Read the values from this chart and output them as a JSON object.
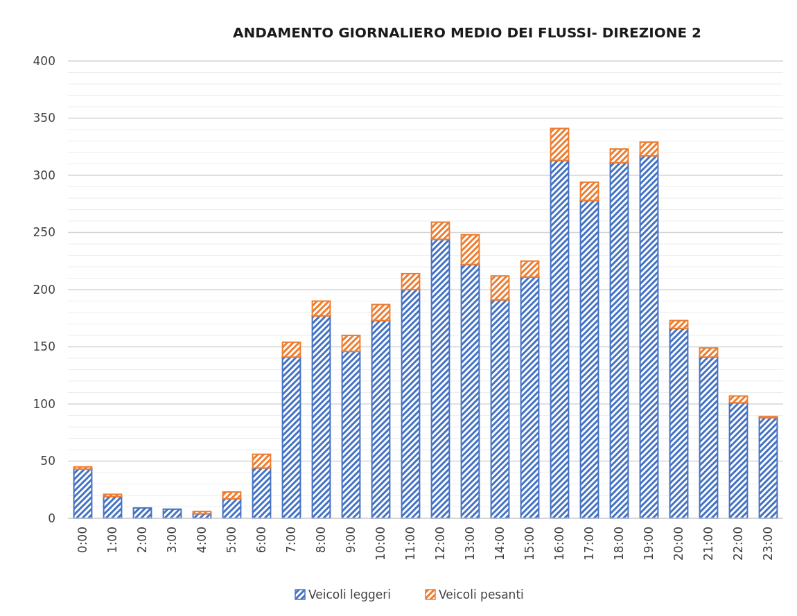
{
  "chart_data": {
    "type": "bar",
    "title": "ANDAMENTO GIORNALIERO MEDIO DEI  FLUSSI- DIREZIONE 2",
    "categories": [
      "0:00",
      "1:00",
      "2:00",
      "3:00",
      "4:00",
      "5:00",
      "6:00",
      "7:00",
      "8:00",
      "9:00",
      "10:00",
      "11:00",
      "12:00",
      "13:00",
      "14:00",
      "15:00",
      "16:00",
      "17:00",
      "18:00",
      "19:00",
      "20:00",
      "21:00",
      "22:00",
      "23:00"
    ],
    "series": [
      {
        "name": "Veicoli leggeri",
        "color": "#4472c4",
        "values": [
          43,
          19,
          9,
          8,
          4,
          17,
          44,
          141,
          177,
          146,
          173,
          200,
          244,
          222,
          191,
          211,
          313,
          278,
          311,
          317,
          166,
          141,
          101,
          88
        ]
      },
      {
        "name": "Veicoli pesanti",
        "color": "#ed7d31",
        "values": [
          2,
          2,
          0,
          0,
          2,
          6,
          12,
          13,
          13,
          14,
          14,
          14,
          15,
          26,
          21,
          14,
          28,
          16,
          12,
          12,
          7,
          8,
          6,
          1
        ]
      }
    ],
    "stacked": true,
    "ylim": [
      0,
      400
    ],
    "yticks": [
      0,
      {
        "value": 10,
        "label": null
      },
      {
        "value": 20,
        "label": null
      },
      {
        "value": 30,
        "label": null
      },
      {
        "value": 40,
        "label": null
      },
      50,
      {
        "value": 60,
        "label": null
      },
      {
        "value": 70,
        "label": null
      },
      {
        "value": 80,
        "label": null
      },
      {
        "value": 90,
        "label": null
      },
      100,
      {
        "value": 110,
        "label": null
      },
      {
        "value": 120,
        "label": null
      },
      {
        "value": 130,
        "label": null
      },
      {
        "value": 140,
        "label": null
      },
      150,
      {
        "value": 160,
        "label": null
      },
      {
        "value": 170,
        "label": null
      },
      {
        "value": 180,
        "label": null
      },
      {
        "value": 190,
        "label": null
      },
      200,
      {
        "value": 210,
        "label": null
      },
      {
        "value": 220,
        "label": null
      },
      {
        "value": 230,
        "label": null
      },
      {
        "value": 240,
        "label": null
      },
      250,
      {
        "value": 260,
        "label": null
      },
      {
        "value": 270,
        "label": null
      },
      {
        "value": 280,
        "label": null
      },
      {
        "value": 290,
        "label": null
      },
      300,
      {
        "value": 310,
        "label": null
      },
      {
        "value": 320,
        "label": null
      },
      {
        "value": 330,
        "label": null
      },
      {
        "value": 340,
        "label": null
      },
      350,
      {
        "value": 360,
        "label": null
      },
      {
        "value": 370,
        "label": null
      },
      {
        "value": 380,
        "label": null
      },
      {
        "value": 390,
        "label": null
      },
      400
    ],
    "grid": "y",
    "legend": "bottom"
  }
}
